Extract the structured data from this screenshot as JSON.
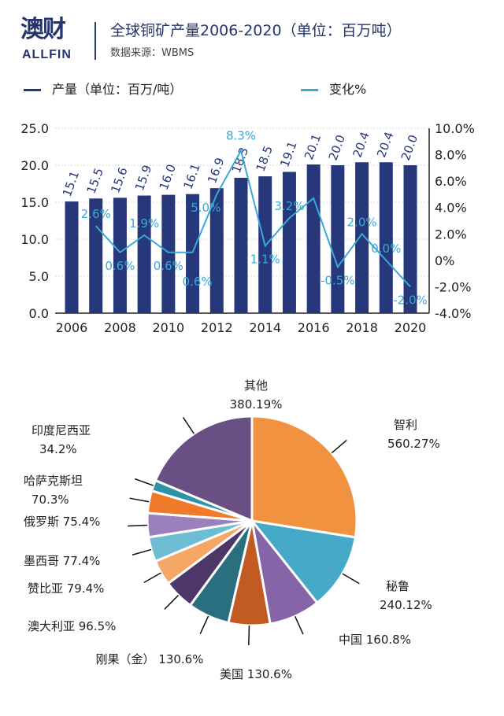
{
  "header": {
    "logo_cn": "澳财",
    "logo_en": "ALLFIN",
    "title": "全球铜矿产量2006-2020（单位：百万吨）",
    "source": "数据来源：WBMS"
  },
  "watermark": "澳财",
  "colors": {
    "bar": "#26387a",
    "line": "#3aa8d8",
    "text_dark": "#26356b"
  },
  "chart_data": [
    {
      "type": "bar+line",
      "legend": [
        {
          "name": "产量（单位：百万/吨）",
          "color": "#26387a"
        },
        {
          "name": "变化%",
          "color": "#3aa8d8"
        }
      ],
      "legend_placement": "top",
      "x": [
        2006,
        2007,
        2008,
        2009,
        2010,
        2011,
        2012,
        2013,
        2014,
        2015,
        2016,
        2017,
        2018,
        2019,
        2020
      ],
      "xticks": [
        "2006",
        "2008",
        "2010",
        "2012",
        "2014",
        "2016",
        "2018",
        "2020"
      ],
      "series": [
        {
          "name": "产量（单位：百万/吨）",
          "type": "bar",
          "axis": "left",
          "values": [
            15.1,
            15.5,
            15.6,
            15.9,
            16.0,
            16.1,
            16.9,
            18.3,
            18.5,
            19.1,
            20.1,
            20.0,
            20.4,
            20.4,
            20.0
          ],
          "labels": [
            "15.1",
            "15.5",
            "15.6",
            "15.9",
            "16.0",
            "16.1",
            "16.9",
            "18.3",
            "18.5",
            "19.1",
            "20.1",
            "20.0",
            "20.4",
            "20.4",
            "20.0"
          ]
        },
        {
          "name": "变化%",
          "type": "line",
          "axis": "right",
          "values": [
            null,
            2.6,
            0.6,
            1.9,
            0.6,
            0.6,
            5.0,
            8.3,
            1.1,
            3.2,
            4.7,
            -0.5,
            2.0,
            0.0,
            -2.0
          ],
          "labels": [
            "",
            "2.6%",
            "0.6%",
            "1.9%",
            "0.6%",
            "0.6%",
            "5.0%",
            "8.3%",
            "1.1%",
            "3.2%",
            "",
            "-0.5%",
            "2.0%",
            "0.0%",
            "-2.0%"
          ]
        }
      ],
      "ylim_left": [
        0,
        25
      ],
      "yticks_left": [
        "0.0",
        "5.0",
        "10.0",
        "15.0",
        "20.0",
        "25.0"
      ],
      "ylim_right": [
        -4,
        10
      ],
      "yticks_right": [
        "-4.0%",
        "-2.0%",
        "0%",
        "2.0%",
        "4.0%",
        "6.0%",
        "8.0%",
        "10.0%"
      ],
      "grid": true
    },
    {
      "type": "pie",
      "slices": [
        {
          "label": "智利",
          "value_label": "560.27%",
          "value": 560.27,
          "color": "#f0923f"
        },
        {
          "label": "秘鲁",
          "value_label": "240.12%",
          "value": 240.12,
          "color": "#47a9c8"
        },
        {
          "label": "中国",
          "value_label": "160.8%",
          "value": 160.8,
          "color": "#8565a8"
        },
        {
          "label": "美国",
          "value_label": "130.6%",
          "value": 130.6,
          "color": "#c25a24"
        },
        {
          "label": "刚果（金）",
          "value_label": "130.6%",
          "value": 130.6,
          "color": "#2a6f80"
        },
        {
          "label": "澳大利亚",
          "value_label": "96.5%",
          "value": 96.5,
          "color": "#4d3668"
        },
        {
          "label": "赞比亚",
          "value_label": "79.4%",
          "value": 79.4,
          "color": "#f5a866"
        },
        {
          "label": "墨西哥",
          "value_label": "77.4%",
          "value": 77.4,
          "color": "#6dbdd3"
        },
        {
          "label": "俄罗斯",
          "value_label": "75.4%",
          "value": 75.4,
          "color": "#9a80bd"
        },
        {
          "label": "哈萨克斯坦",
          "value_label": "70.3%",
          "value": 70.3,
          "color": "#ee7a2a"
        },
        {
          "label": "印度尼西亚",
          "value_label": "34.2%",
          "value": 34.2,
          "color": "#2f93a8"
        },
        {
          "label": "其他",
          "value_label": "380.19%",
          "value": 380.19,
          "color": "#6a4f84"
        }
      ]
    }
  ]
}
